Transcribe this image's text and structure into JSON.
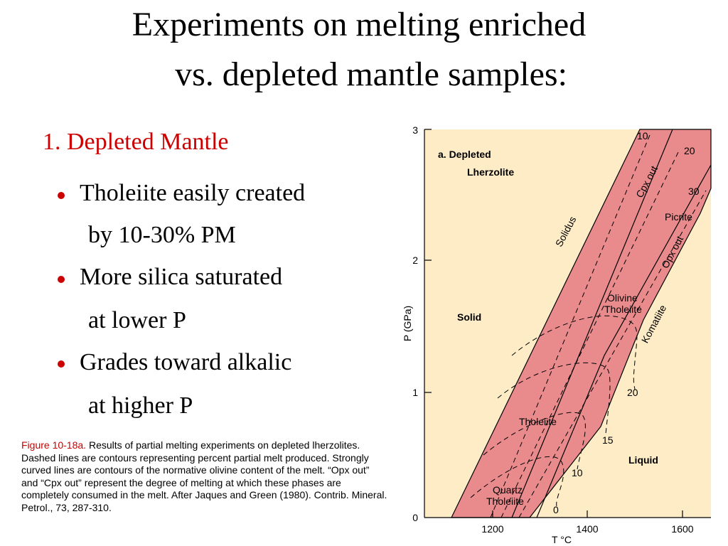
{
  "title": [
    "Experiments on melting enriched",
    "vs. depleted mantle samples:"
  ],
  "subtitle": "1.  Depleted Mantle",
  "bullets": [
    {
      "line1": "Tholeiite easily created",
      "line2": "by 10-30% PM"
    },
    {
      "line1": "More silica saturated",
      "line2": "at lower P"
    },
    {
      "line1": "Grades toward alkalic",
      "line2": "at higher P"
    }
  ],
  "caption": {
    "label": "Figure 10-18a.",
    "text": "Results of partial melting experiments on depleted lherzolites. Dashed lines are contours representing percent partial melt produced. Strongly curved lines are contours of the normative olivine content of the melt. “Opx out” and “Cpx out” represent the degree of melting at which these phases are completely consumed in the melt. After Jaques and Green (1980). Contrib. Mineral. Petrol., 73, 287-310."
  },
  "figure": {
    "panel": [
      "a.  Depleted",
      "Lherzolite"
    ],
    "x_label": "T °C",
    "y_label": "P (GPa)",
    "xticks": [
      "1200",
      "1400",
      "1600"
    ],
    "yticks": [
      "0",
      "1",
      "2",
      "3"
    ],
    "regions": [
      "Solid",
      "Liquid"
    ],
    "labels": [
      "Solidus",
      "Cpx out",
      "Opx out",
      "Komatiite",
      "10",
      "20",
      "30",
      "Picrite",
      "Olivine",
      "Tholeiite",
      "Tholeiite",
      "Quartz",
      "Tholeiite",
      "20",
      "15",
      "10",
      "0"
    ]
  }
}
